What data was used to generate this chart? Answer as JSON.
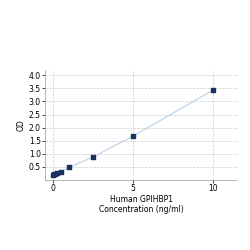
{
  "x": [
    0,
    0.0625,
    0.125,
    0.25,
    0.5,
    1.0,
    2.5,
    5.0,
    10.0
  ],
  "y": [
    0.197,
    0.215,
    0.235,
    0.265,
    0.32,
    0.48,
    0.88,
    1.68,
    3.44
  ],
  "line_color": "#b8d0e8",
  "marker_color": "#1a3060",
  "marker_size": 3.5,
  "xlabel_line1": "Human GPIHBP1",
  "xlabel_line2": "Concentration (ng/ml)",
  "ylabel": "OD",
  "xlim": [
    -0.5,
    11.5
  ],
  "ylim": [
    0.0,
    4.2
  ],
  "yticks": [
    0.5,
    1.0,
    1.5,
    2.0,
    2.5,
    3.0,
    3.5,
    4.0
  ],
  "xticks": [
    0,
    5,
    10
  ],
  "xtick_labels": [
    "0",
    "5",
    "10"
  ],
  "grid_color": "#cccccc",
  "bg_color": "#ffffff",
  "fig_bg_color": "#ffffff",
  "label_fontsize": 5.5,
  "tick_fontsize": 5.5
}
